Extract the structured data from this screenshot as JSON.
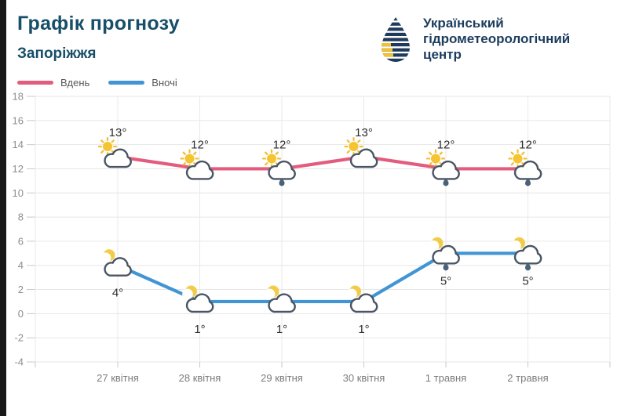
{
  "header": {
    "title": "Графік прогнозу",
    "city": "Запоріжжя",
    "org_lines": [
      "Український",
      "гідрометеорологічний",
      "центр"
    ],
    "title_color": "#174e68",
    "logo_navy": "#1e3a5c",
    "logo_yellow": "#f1c12f"
  },
  "legend": {
    "day_label": "Вдень",
    "night_label": "Вночі"
  },
  "chart_data": {
    "type": "line",
    "title": "Графік прогнозу — Запоріжжя",
    "xlabel": "",
    "ylabel": "",
    "unit": "°",
    "x": [
      "27 квітня",
      "28 квітня",
      "29 квітня",
      "30 квітня",
      "1 травня",
      "2 травня"
    ],
    "series": [
      {
        "name": "Вдень",
        "color": "#e25c7d",
        "values": [
          13,
          12,
          12,
          13,
          12,
          12
        ],
        "icon": "sun-cloud",
        "rain": [
          false,
          false,
          true,
          false,
          true,
          true
        ],
        "label_position": "above"
      },
      {
        "name": "Вночі",
        "color": "#4295d5",
        "values": [
          4,
          1,
          1,
          1,
          5,
          5
        ],
        "icon": "moon-cloud",
        "rain": [
          false,
          false,
          false,
          false,
          true,
          true
        ],
        "label_position": "below"
      }
    ],
    "ylim": [
      -4,
      18
    ],
    "ytick_step": 2,
    "grid": true,
    "legend_position": "top-left"
  }
}
